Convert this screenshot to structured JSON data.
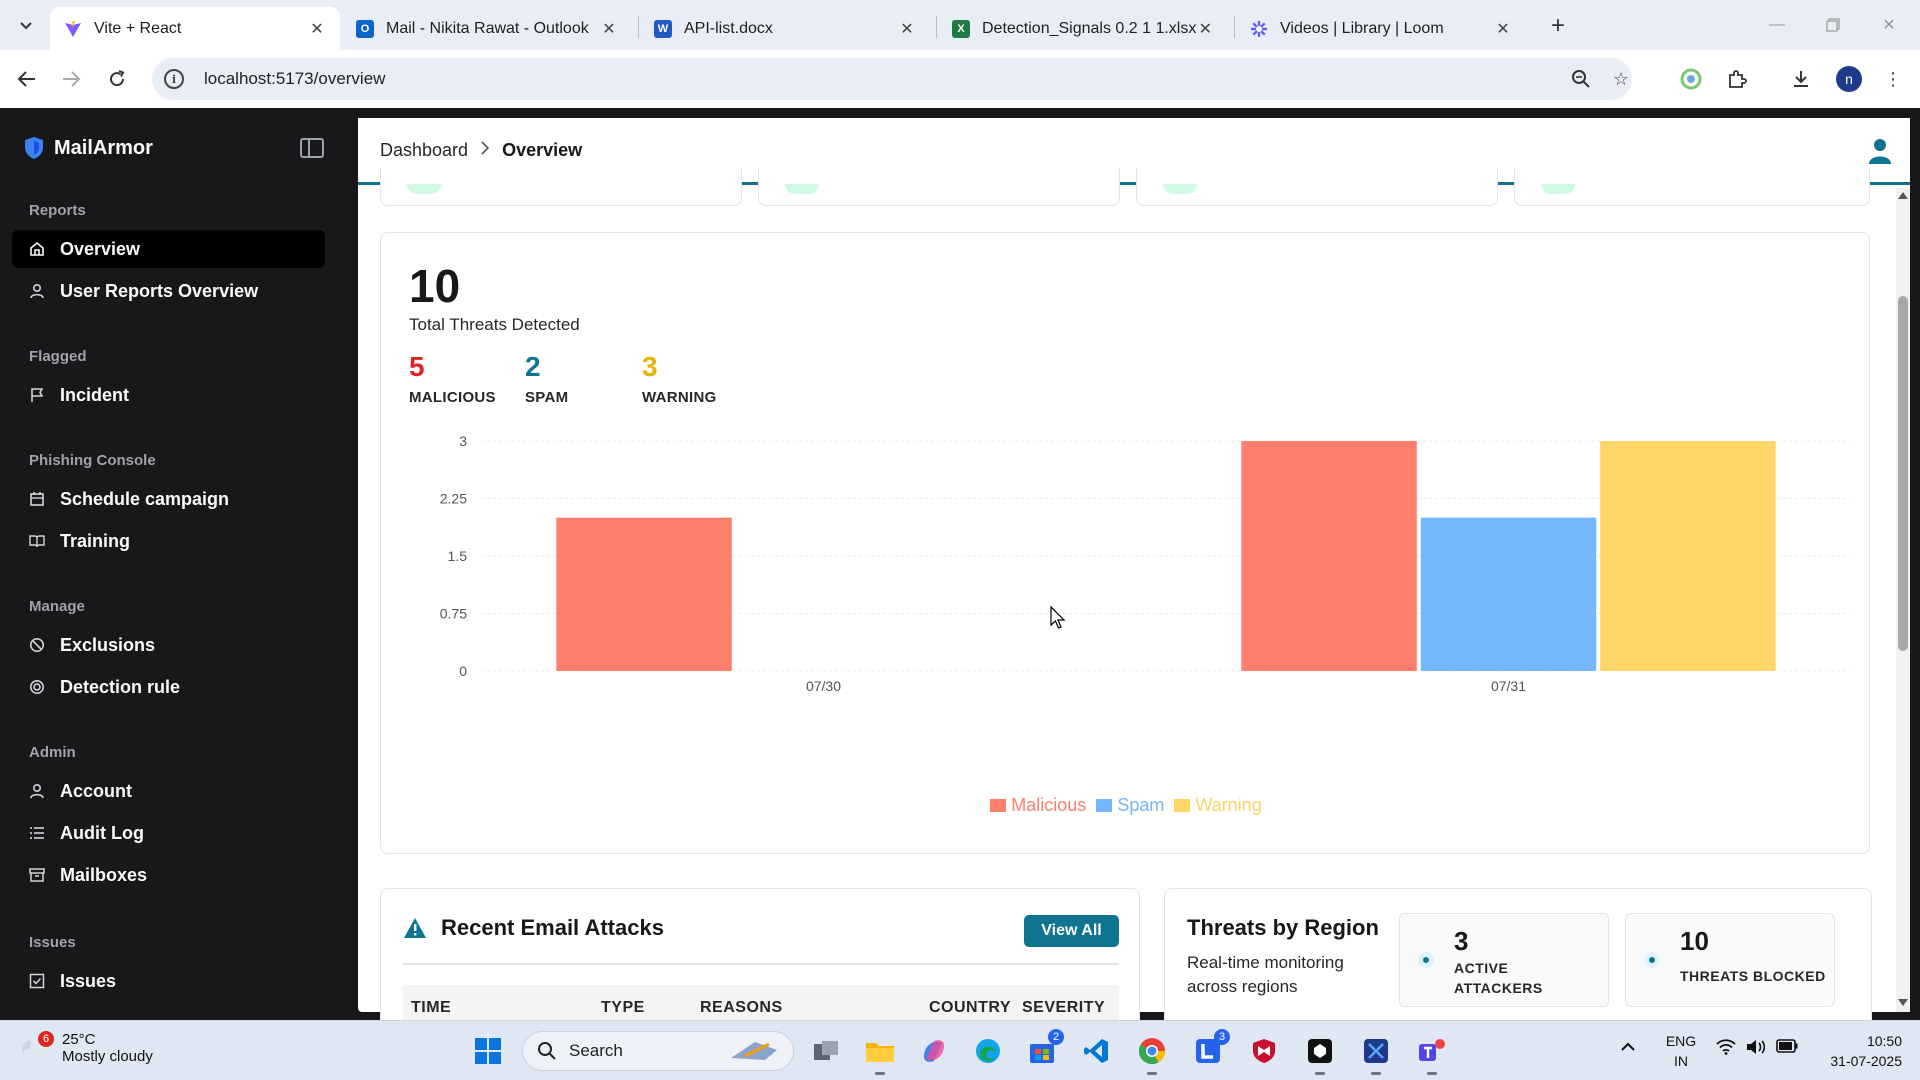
{
  "browser": {
    "tabs": [
      {
        "title": "Vite + React",
        "icon": "vite-icon",
        "active": true
      },
      {
        "title": "Mail - Nikita Rawat - Outlook",
        "icon": "outlook-icon",
        "active": false
      },
      {
        "title": "API-list.docx",
        "icon": "word-icon",
        "active": false
      },
      {
        "title": "Detection_Signals 0.2 1 1.xlsx",
        "icon": "excel-icon",
        "active": false
      },
      {
        "title": "Videos | Library | Loom",
        "icon": "loom-icon",
        "active": false
      }
    ],
    "url": "localhost:5173/overview",
    "profile_initial": "n"
  },
  "sidebar": {
    "brand": "MailArmor",
    "groups": [
      {
        "label": "Reports",
        "items": [
          {
            "label": "Overview",
            "icon": "home-icon",
            "active": true
          },
          {
            "label": "User Reports Overview",
            "icon": "user-icon",
            "active": false
          }
        ]
      },
      {
        "label": "Flagged",
        "items": [
          {
            "label": "Incident",
            "icon": "flag-icon",
            "active": false
          }
        ]
      },
      {
        "label": "Phishing Console",
        "items": [
          {
            "label": "Schedule campaign",
            "icon": "calendar-icon",
            "active": false
          },
          {
            "label": "Training",
            "icon": "book-icon",
            "active": false
          }
        ]
      },
      {
        "label": "Manage",
        "items": [
          {
            "label": "Exclusions",
            "icon": "ban-icon",
            "active": false
          },
          {
            "label": "Detection rule",
            "icon": "target-icon",
            "active": false
          }
        ]
      },
      {
        "label": "Admin",
        "items": [
          {
            "label": "Account",
            "icon": "user-icon",
            "active": false
          },
          {
            "label": "Audit Log",
            "icon": "list-icon",
            "active": false
          },
          {
            "label": "Mailboxes",
            "icon": "archive-icon",
            "active": false
          }
        ]
      },
      {
        "label": "Issues",
        "items": [
          {
            "label": "Issues",
            "icon": "check-square-icon",
            "active": false
          }
        ]
      }
    ]
  },
  "breadcrumb": {
    "parent": "Dashboard",
    "current": "Overview"
  },
  "threats": {
    "total": "10",
    "total_label": "Total Threats Detected",
    "breakdown": [
      {
        "value": "5",
        "label": "MALICIOUS",
        "color": "#dc2626"
      },
      {
        "value": "2",
        "label": "SPAM",
        "color": "#0e7490"
      },
      {
        "value": "3",
        "label": "WARNING",
        "color": "#eab308"
      }
    ]
  },
  "chart_data": {
    "type": "bar",
    "categories": [
      "07/30",
      "07/31"
    ],
    "series": [
      {
        "name": "Malicious",
        "values": [
          2,
          3
        ],
        "color": "#ff7f6e"
      },
      {
        "name": "Spam",
        "values": [
          0,
          2
        ],
        "color": "#74b7fb"
      },
      {
        "name": "Warning",
        "values": [
          0,
          3
        ],
        "color": "#ffd568"
      }
    ],
    "yticks": [
      "0",
      "0.75",
      "1.5",
      "2.25",
      "3"
    ],
    "ylim": [
      0,
      3
    ],
    "grid": true,
    "legend": "bottom-center"
  },
  "recent_attacks": {
    "title": "Recent Email Attacks",
    "view_all": "View All",
    "columns": [
      "TIME",
      "TYPE",
      "REASONS",
      "COUNTRY",
      "SEVERITY"
    ]
  },
  "region": {
    "title": "Threats by Region",
    "subtitle": "Real-time monitoring across regions",
    "stats": [
      {
        "value": "3",
        "label_line1": "ACTIVE",
        "label_line2": "ATTACKERS"
      },
      {
        "value": "10",
        "label_line1": "THREATS BLOCKED",
        "label_line2": ""
      }
    ]
  },
  "taskbar": {
    "weather_badge": "6",
    "temperature": "25°C",
    "condition": "Mostly cloudy",
    "search": "Search",
    "store_badge": "2",
    "l_badge": "3",
    "lang_line1": "ENG",
    "lang_line2": "IN",
    "time": "10:50",
    "date": "31-07-2025"
  }
}
